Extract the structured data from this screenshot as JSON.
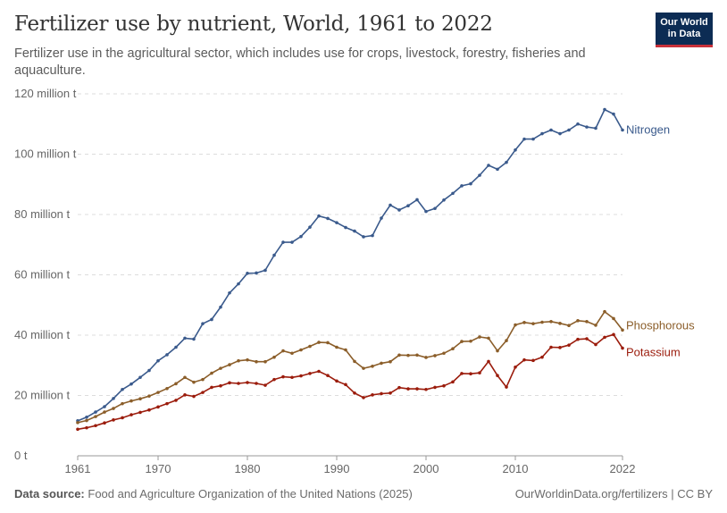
{
  "header": {
    "title": "Fertilizer use by nutrient, World, 1961 to 2022",
    "subtitle": "Fertilizer use in the agricultural sector, which includes use for crops, livestock, forestry, fisheries and aquaculture.",
    "logo_line1": "Our World",
    "logo_line2": "in Data"
  },
  "footer": {
    "source_label": "Data source:",
    "source_text": "Food and Agriculture Organization of the United Nations (2025)",
    "right_text": "OurWorldinData.org/fertilizers | CC BY"
  },
  "colors": {
    "nitrogen": "#3a5a8c",
    "phosphorous": "#8b5e2a",
    "potassium": "#9b1c0c",
    "grid": "#dddddd"
  },
  "chart_data": {
    "type": "line",
    "title": "Fertilizer use by nutrient, World, 1961 to 2022",
    "ylabel": "",
    "xlabel": "",
    "xlim": [
      1961,
      2022
    ],
    "ylim": [
      0,
      120
    ],
    "y_unit": "million t",
    "y_ticks": [
      0,
      20,
      40,
      60,
      80,
      100,
      120
    ],
    "y_tick_labels": [
      "0 t",
      "20 million t",
      "40 million t",
      "60 million t",
      "80 million t",
      "100 million t",
      "120 million t"
    ],
    "x_ticks": [
      1961,
      1970,
      1980,
      1990,
      2000,
      2010,
      2022
    ],
    "x_tick_labels": [
      "1961",
      "1970",
      "1980",
      "1990",
      "2000",
      "2010",
      "2022"
    ],
    "grid": "horizontal-dashed",
    "legend": "inline-right",
    "x": [
      1961,
      1962,
      1963,
      1964,
      1965,
      1966,
      1967,
      1968,
      1969,
      1970,
      1971,
      1972,
      1973,
      1974,
      1975,
      1976,
      1977,
      1978,
      1979,
      1980,
      1981,
      1982,
      1983,
      1984,
      1985,
      1986,
      1987,
      1988,
      1989,
      1990,
      1991,
      1992,
      1993,
      1994,
      1995,
      1996,
      1997,
      1998,
      1999,
      2000,
      2001,
      2002,
      2003,
      2004,
      2005,
      2006,
      2007,
      2008,
      2009,
      2010,
      2011,
      2012,
      2013,
      2014,
      2015,
      2016,
      2017,
      2018,
      2019,
      2020,
      2021,
      2022
    ],
    "series": [
      {
        "name": "Nitrogen",
        "color": "#3a5a8c",
        "values": [
          11.6,
          12.8,
          14.5,
          16.3,
          19.0,
          22.0,
          23.8,
          26.0,
          28.3,
          31.5,
          33.5,
          36.0,
          39.0,
          38.7,
          43.8,
          45.2,
          49.3,
          54.0,
          57.0,
          60.5,
          60.6,
          61.5,
          66.5,
          70.8,
          70.8,
          72.7,
          75.8,
          79.5,
          78.7,
          77.3,
          75.7,
          74.5,
          72.6,
          73.0,
          78.8,
          83.1,
          81.5,
          82.9,
          84.9,
          81.0,
          82.0,
          84.8,
          87.0,
          89.5,
          90.2,
          93.0,
          96.3,
          95.0,
          97.3,
          101.4,
          105.0,
          105.0,
          106.8,
          108.0,
          106.8,
          108.0,
          110.0,
          109.0,
          108.6,
          114.8,
          113.3,
          108.0
        ]
      },
      {
        "name": "Phosphorous",
        "color": "#8b5e2a",
        "values": [
          11.0,
          11.7,
          13.0,
          14.5,
          15.7,
          17.3,
          18.2,
          18.9,
          19.8,
          21.0,
          22.3,
          23.9,
          26.0,
          24.4,
          25.3,
          27.4,
          29.0,
          30.2,
          31.5,
          31.8,
          31.2,
          31.2,
          32.7,
          34.8,
          34.0,
          35.1,
          36.3,
          37.6,
          37.5,
          36.0,
          35.1,
          31.3,
          29.0,
          29.7,
          30.7,
          31.2,
          33.4,
          33.3,
          33.4,
          32.6,
          33.2,
          34.0,
          35.5,
          37.9,
          38.0,
          39.4,
          39.0,
          34.8,
          38.2,
          43.4,
          44.2,
          43.8,
          44.3,
          44.5,
          43.9,
          43.2,
          44.8,
          44.5,
          43.3,
          47.8,
          45.5,
          41.7
        ]
      },
      {
        "name": "Potassium",
        "color": "#9b1c0c",
        "values": [
          8.8,
          9.3,
          10.0,
          10.9,
          11.9,
          12.6,
          13.6,
          14.4,
          15.2,
          16.2,
          17.3,
          18.4,
          20.2,
          19.7,
          21.0,
          22.7,
          23.2,
          24.2,
          24.0,
          24.3,
          24.0,
          23.4,
          25.3,
          26.2,
          26.0,
          26.5,
          27.3,
          28.0,
          26.6,
          24.8,
          23.6,
          20.8,
          19.3,
          20.2,
          20.6,
          20.8,
          22.6,
          22.2,
          22.2,
          22.0,
          22.7,
          23.2,
          24.5,
          27.3,
          27.2,
          27.5,
          31.3,
          26.6,
          22.8,
          29.4,
          31.8,
          31.6,
          32.7,
          36.0,
          35.9,
          36.7,
          38.6,
          38.8,
          36.9,
          39.3,
          40.2,
          35.7
        ]
      }
    ]
  }
}
